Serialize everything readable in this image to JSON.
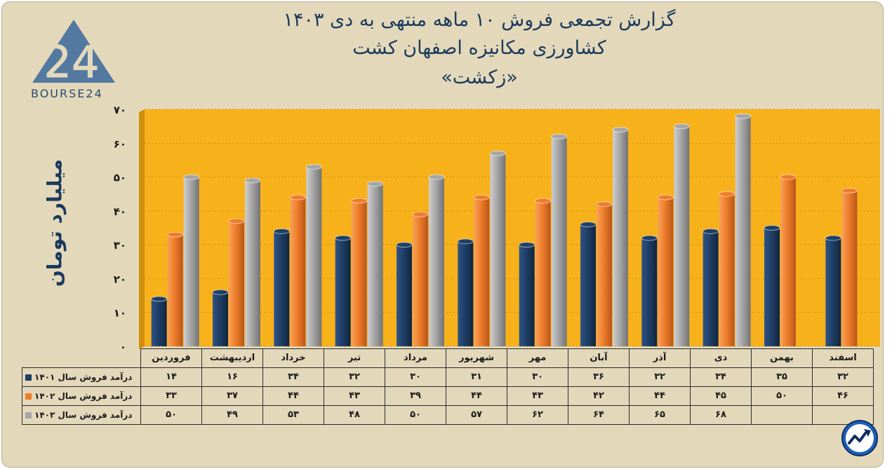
{
  "title": {
    "line1": "گزارش تجمعی فروش ۱۰ ماهه منتهی به دی ۱۴۰۳",
    "line2": "کشاورزی مکانیزه اصفهان کشت",
    "line3": "«زکشت»"
  },
  "logo": {
    "text": "BOURSE24",
    "mark": "24"
  },
  "chart_data": {
    "type": "bar",
    "ylabel": "میلیارد تومان",
    "ylim": [
      0,
      70
    ],
    "yticks": [
      "۰",
      "۱۰",
      "۲۰",
      "۳۰",
      "۴۰",
      "۵۰",
      "۶۰",
      "۷۰"
    ],
    "categories": [
      "فروردین",
      "اردیبهشت",
      "خرداد",
      "تیر",
      "مرداد",
      "شهریور",
      "مهر",
      "آبان",
      "آذر",
      "دی",
      "بهمن",
      "اسفند"
    ],
    "series": [
      {
        "name": "درآمد فروش سال ۱۴۰۱",
        "color": "#1f3f66",
        "values": [
          14,
          16,
          34,
          32,
          30,
          31,
          30,
          36,
          32,
          34,
          35,
          32
        ],
        "labels": [
          "۱۴",
          "۱۶",
          "۳۴",
          "۳۲",
          "۳۰",
          "۳۱",
          "۳۰",
          "۳۶",
          "۳۲",
          "۳۴",
          "۳۵",
          "۳۲"
        ]
      },
      {
        "name": "درآمد فروش سال ۱۴۰۲",
        "color": "#ee7d2a",
        "values": [
          33,
          37,
          44,
          43,
          39,
          44,
          43,
          42,
          44,
          45,
          50,
          46
        ],
        "labels": [
          "۳۳",
          "۳۷",
          "۴۴",
          "۴۳",
          "۳۹",
          "۴۴",
          "۴۳",
          "۴۲",
          "۴۴",
          "۴۵",
          "۵۰",
          "۴۶"
        ]
      },
      {
        "name": "درآمد فروش سال ۱۴۰۳",
        "color": "#a6a6a6",
        "values": [
          50,
          49,
          53,
          48,
          50,
          57,
          62,
          64,
          65,
          68,
          null,
          null
        ],
        "labels": [
          "۵۰",
          "۴۹",
          "۵۳",
          "۴۸",
          "۵۰",
          "۵۷",
          "۶۲",
          "۶۴",
          "۶۵",
          "۶۸",
          "",
          ""
        ]
      }
    ],
    "plot_background": "#f7b11b",
    "grid": true,
    "legend": "table-bottom"
  }
}
